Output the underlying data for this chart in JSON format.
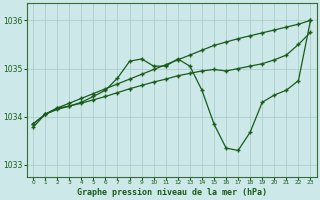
{
  "xlabel": "Graphe pression niveau de la mer (hPa)",
  "bg_color": "#cce8e8",
  "grid_color": "#a8c8c8",
  "line_color": "#1a5c1a",
  "ylim": [
    1032.75,
    1036.35
  ],
  "xlim": [
    -0.5,
    23.5
  ],
  "yticks": [
    1033,
    1034,
    1035,
    1036
  ],
  "xticks": [
    0,
    1,
    2,
    3,
    4,
    5,
    6,
    7,
    8,
    9,
    10,
    11,
    12,
    13,
    14,
    15,
    16,
    17,
    18,
    19,
    20,
    21,
    22,
    23
  ],
  "line_top": [
    1033.85,
    1034.05,
    1034.18,
    1034.28,
    1034.38,
    1034.48,
    1034.58,
    1034.68,
    1034.78,
    1034.88,
    1034.98,
    1035.08,
    1035.18,
    1035.28,
    1035.38,
    1035.48,
    1035.55,
    1035.62,
    1035.68,
    1035.74,
    1035.8,
    1035.86,
    1035.92,
    1036.0
  ],
  "line_mid": [
    1033.85,
    1034.05,
    1034.18,
    1034.22,
    1034.28,
    1034.35,
    1034.42,
    1034.5,
    1034.58,
    1034.65,
    1034.72,
    1034.78,
    1034.85,
    1034.9,
    1034.95,
    1034.98,
    1034.95,
    1035.0,
    1035.05,
    1035.1,
    1035.18,
    1035.28,
    1035.5,
    1035.75
  ],
  "line_dip": [
    1033.78,
    1034.05,
    1034.15,
    1034.22,
    1034.3,
    1034.42,
    1034.55,
    1034.8,
    1035.15,
    1035.2,
    1035.05,
    1035.05,
    1035.2,
    1035.05,
    1034.55,
    1033.85,
    1033.35,
    1033.3,
    1033.68,
    1034.3,
    1034.45,
    1034.55,
    1034.75,
    1036.0
  ]
}
